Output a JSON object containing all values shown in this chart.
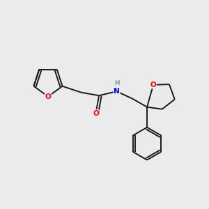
{
  "background_color": "#ebebeb",
  "bond_color": "#1a1a1a",
  "atom_colors": {
    "O": "#ff0000",
    "N": "#0000ff",
    "H": "#6fa0a0",
    "C": "#1a1a1a"
  },
  "bond_width": 1.4,
  "font_size_atom": 7.5,
  "figsize": [
    3.0,
    3.0
  ],
  "dpi": 100
}
